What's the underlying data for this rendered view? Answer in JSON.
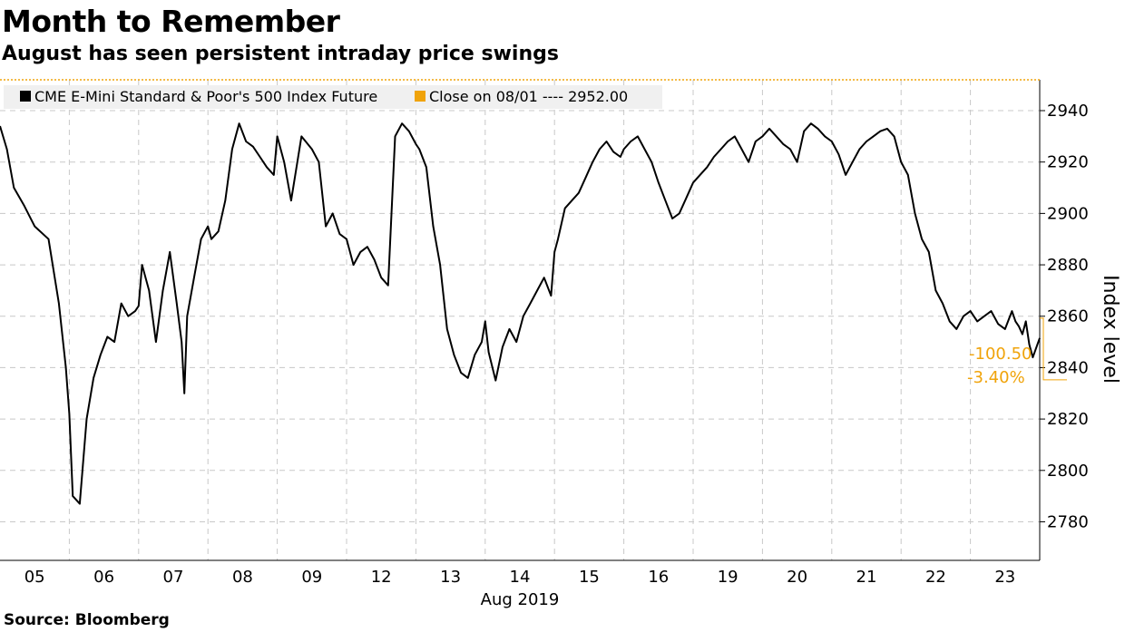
{
  "title": "Month to Remember",
  "subtitle": "August has seen persistent intraday price swings",
  "source": "Source: Bloomberg",
  "chart_data": {
    "type": "line",
    "ylabel": "Index level",
    "xlabel": "Aug 2019",
    "ylim": [
      2765,
      2952
    ],
    "yticks": [
      2780,
      2800,
      2820,
      2840,
      2860,
      2880,
      2900,
      2920,
      2940
    ],
    "categories": [
      "05",
      "06",
      "07",
      "08",
      "09",
      "12",
      "13",
      "14",
      "15",
      "16",
      "19",
      "20",
      "21",
      "22",
      "23"
    ],
    "grid": true,
    "legend_position": "top-left",
    "colors": {
      "series": "#000000",
      "reference": "#f0a30a",
      "grid": "#c8c8c8"
    },
    "reference_line": {
      "label": "Close on 08/01 ---- 2952.00",
      "value": 2952.0
    },
    "series": [
      {
        "name": "CME E-Mini Standard & Poor's 500 Index Future",
        "x": [
          0.0,
          0.1,
          0.2,
          0.35,
          0.5,
          0.7,
          0.85,
          0.95,
          1.0,
          1.05,
          1.15,
          1.25,
          1.35,
          1.45,
          1.55,
          1.65,
          1.75,
          1.85,
          1.95,
          2.0,
          2.05,
          2.15,
          2.25,
          2.35,
          2.45,
          2.55,
          2.62,
          2.66,
          2.7,
          2.8,
          2.9,
          3.0,
          3.05,
          3.15,
          3.25,
          3.35,
          3.45,
          3.55,
          3.65,
          3.75,
          3.85,
          3.95,
          4.0,
          4.1,
          4.2,
          4.35,
          4.5,
          4.6,
          4.7,
          4.8,
          4.9,
          5.0,
          5.1,
          5.2,
          5.3,
          5.4,
          5.5,
          5.6,
          5.7,
          5.8,
          5.9,
          6.0,
          6.05,
          6.15,
          6.25,
          6.35,
          6.45,
          6.55,
          6.65,
          6.75,
          6.85,
          6.95,
          7.0,
          7.05,
          7.15,
          7.25,
          7.35,
          7.45,
          7.55,
          7.65,
          7.75,
          7.85,
          7.95,
          8.0,
          8.05,
          8.15,
          8.25,
          8.35,
          8.45,
          8.55,
          8.65,
          8.75,
          8.85,
          8.95,
          9.0,
          9.1,
          9.2,
          9.3,
          9.4,
          9.5,
          9.6,
          9.7,
          9.8,
          9.9,
          10.0,
          10.1,
          10.2,
          10.3,
          10.4,
          10.5,
          10.6,
          10.7,
          10.8,
          10.9,
          11.0,
          11.1,
          11.2,
          11.3,
          11.4,
          11.5,
          11.6,
          11.7,
          11.8,
          11.9,
          12.0,
          12.1,
          12.2,
          12.3,
          12.4,
          12.5,
          12.6,
          12.7,
          12.8,
          12.9,
          13.0,
          13.1,
          13.2,
          13.3,
          13.4,
          13.5,
          13.6,
          13.7,
          13.8,
          13.9,
          14.0,
          14.1,
          14.2,
          14.3,
          14.4,
          14.5,
          14.6,
          14.65,
          14.7,
          14.75,
          14.8,
          14.85,
          14.9,
          15.0
        ],
        "values": [
          2934,
          2925,
          2910,
          2903,
          2895,
          2890,
          2865,
          2840,
          2822,
          2790,
          2787,
          2820,
          2836,
          2845,
          2852,
          2850,
          2865,
          2860,
          2862,
          2864,
          2880,
          2870,
          2850,
          2870,
          2885,
          2865,
          2850,
          2830,
          2860,
          2875,
          2890,
          2895,
          2890,
          2893,
          2905,
          2925,
          2935,
          2928,
          2926,
          2922,
          2918,
          2915,
          2930,
          2920,
          2905,
          2930,
          2925,
          2920,
          2895,
          2900,
          2892,
          2890,
          2880,
          2885,
          2887,
          2882,
          2875,
          2872,
          2930,
          2935,
          2932,
          2927,
          2925,
          2918,
          2895,
          2880,
          2855,
          2845,
          2838,
          2836,
          2845,
          2850,
          2858,
          2846,
          2835,
          2848,
          2855,
          2850,
          2860,
          2865,
          2870,
          2875,
          2868,
          2885,
          2890,
          2902,
          2905,
          2908,
          2914,
          2920,
          2925,
          2928,
          2924,
          2922,
          2925,
          2928,
          2930,
          2925,
          2920,
          2912,
          2905,
          2898,
          2900,
          2906,
          2912,
          2915,
          2918,
          2922,
          2925,
          2928,
          2930,
          2925,
          2920,
          2928,
          2930,
          2933,
          2930,
          2927,
          2925,
          2920,
          2932,
          2935,
          2933,
          2930,
          2928,
          2923,
          2915,
          2920,
          2925,
          2928,
          2930,
          2932,
          2933,
          2930,
          2920,
          2915,
          2900,
          2890,
          2885,
          2870,
          2865,
          2858,
          2855,
          2860,
          2862,
          2858,
          2860,
          2862,
          2857,
          2855,
          2862,
          2858,
          2856,
          2853,
          2858,
          2849,
          2844,
          2851.5
        ]
      }
    ],
    "annotations": [
      {
        "label": "-100.50"
      },
      {
        "label": "-3.40%"
      }
    ]
  }
}
